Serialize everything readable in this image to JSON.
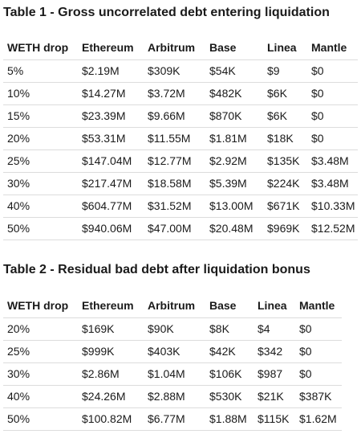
{
  "table1": {
    "title": "Table 1 - Gross uncorrelated debt entering liquidation",
    "headers": [
      "WETH drop",
      "Ethereum",
      "Arbitrum",
      "Base",
      "Linea",
      "Mantle"
    ],
    "rows": [
      [
        "5%",
        "$2.19M",
        "$309K",
        "$54K",
        "$9",
        "$0"
      ],
      [
        "10%",
        "$14.27M",
        "$3.72M",
        "$482K",
        "$6K",
        "$0"
      ],
      [
        "15%",
        "$23.39M",
        "$9.66M",
        "$870K",
        "$6K",
        "$0"
      ],
      [
        "20%",
        "$53.31M",
        "$11.55M",
        "$1.81M",
        "$18K",
        "$0"
      ],
      [
        "25%",
        "$147.04M",
        "$12.77M",
        "$2.92M",
        "$135K",
        "$3.48M"
      ],
      [
        "30%",
        "$217.47M",
        "$18.58M",
        "$5.39M",
        "$224K",
        "$3.48M"
      ],
      [
        "40%",
        "$604.77M",
        "$31.52M",
        "$13.00M",
        "$671K",
        "$10.33M"
      ],
      [
        "50%",
        "$940.06M",
        "$47.00M",
        "$20.48M",
        "$969K",
        "$12.52M"
      ]
    ]
  },
  "table2": {
    "title": "Table 2 - Residual bad debt after liquidation bonus",
    "headers": [
      "WETH drop",
      "Ethereum",
      "Arbitrum",
      "Base",
      "Linea",
      "Mantle"
    ],
    "rows": [
      [
        "20%",
        "$169K",
        "$90K",
        "$8K",
        "$4",
        "$0"
      ],
      [
        "25%",
        "$999K",
        "$403K",
        "$42K",
        "$342",
        "$0"
      ],
      [
        "30%",
        "$2.86M",
        "$1.04M",
        "$106K",
        "$987",
        "$0"
      ],
      [
        "40%",
        "$24.26M",
        "$2.88M",
        "$530K",
        "$21K",
        "$387K"
      ],
      [
        "50%",
        "$100.82M",
        "$6.77M",
        "$1.88M",
        "$115K",
        "$1.62M"
      ]
    ]
  }
}
